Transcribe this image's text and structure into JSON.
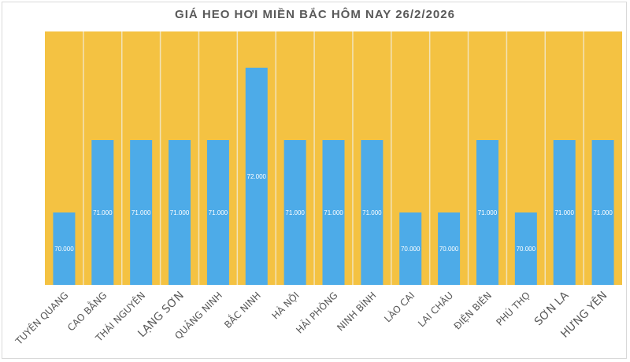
{
  "chart_data": {
    "type": "bar",
    "title": "GIÁ HEO HƠI MIỀN BẮC HÔM NAY 26/2/2026",
    "categories": [
      "TUYÊN QUANG",
      "CAO BẰNG",
      "THÁI NGUYÊN",
      "LẠNG SƠN",
      "QUẢNG NINH",
      "BẮC NINH",
      "HÀ NỘI",
      "HẢI PHÒNG",
      "NINH BÌNH",
      "LÀO CAI",
      "LAI CHÂU",
      "ĐIỆN BIÊN",
      "PHÚ THỌ",
      "SƠN LA",
      "HƯNG YÊN"
    ],
    "values": [
      70000,
      71000,
      71000,
      71000,
      71000,
      72000,
      71000,
      71000,
      71000,
      70000,
      70000,
      71000,
      70000,
      71000,
      71000
    ],
    "data_labels": [
      "70.000",
      "71.000",
      "71.000",
      "71.000",
      "71.000",
      "72.000",
      "71.000",
      "71.000",
      "71.000",
      "70.000",
      "70.000",
      "71.000",
      "70.000",
      "71.000",
      "71.000"
    ],
    "ylim": [
      69000,
      72500
    ],
    "xlabel": "",
    "ylabel": "",
    "grid": false,
    "legend": "none",
    "colors": {
      "bar": "#4DABE8",
      "plot_background": "#F4C242",
      "separator": "#F2E3B8"
    }
  }
}
